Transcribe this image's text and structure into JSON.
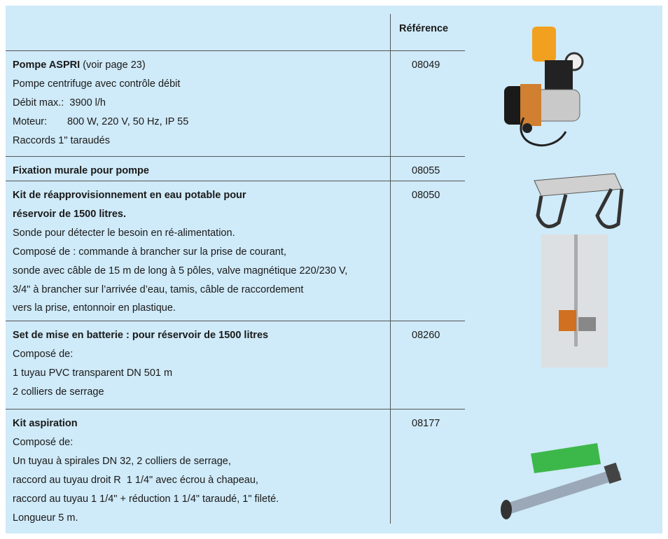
{
  "header": {
    "reference_label": "Référence"
  },
  "rows": [
    {
      "title": [
        "Pompe ASPRI"
      ],
      "note": "(voir page 23)",
      "reference": "08049",
      "lines": [
        "Pompe centrifuge avec contrôle débit",
        "Débit max.:  3900 l/h",
        {
          "label": "Moteur:",
          "value": "800 W, 220 V, 50 Hz, IP 55"
        },
        "Raccords 1\" taraudés"
      ]
    },
    {
      "title": [
        "Fixation murale pour pompe"
      ],
      "reference": "08055",
      "lines": []
    },
    {
      "title": [
        "Kit de réapprovisionnement en eau potable pour",
        "réservoir de 1500 litres."
      ],
      "reference": "08050",
      "lines": [
        "Sonde pour détecter le besoin en ré-alimentation.",
        "Composé de : commande à brancher sur la prise de courant,",
        "sonde avec câble de 15 m de long à 5 pôles, valve magnétique 220/230 V,",
        "3/4\" à brancher sur l’arrivée d’eau, tamis, câble de raccordement",
        "vers la prise, entonnoir en plastique."
      ]
    },
    {
      "title": [
        "Set de mise en batterie : pour réservoir de 1500 litres"
      ],
      "reference": "08260",
      "lines": [
        "Composé de:",
        "1 tuyau PVC transparent DN 501 m",
        "2 colliers de serrage"
      ]
    },
    {
      "title": [
        "Kit aspiration"
      ],
      "reference": "08177",
      "lines": [
        "Composé de:",
        "Un tuyau à spirales DN 32, 2 colliers de serrage,",
        "raccord au tuyau droit R  1 1/4\" avec écrou à chapeau,",
        "raccord au tuyau 1 1/4\" + réduction 1 1/4\" taraudé, 1\" fileté.",
        "Longueur 5 m."
      ]
    }
  ]
}
